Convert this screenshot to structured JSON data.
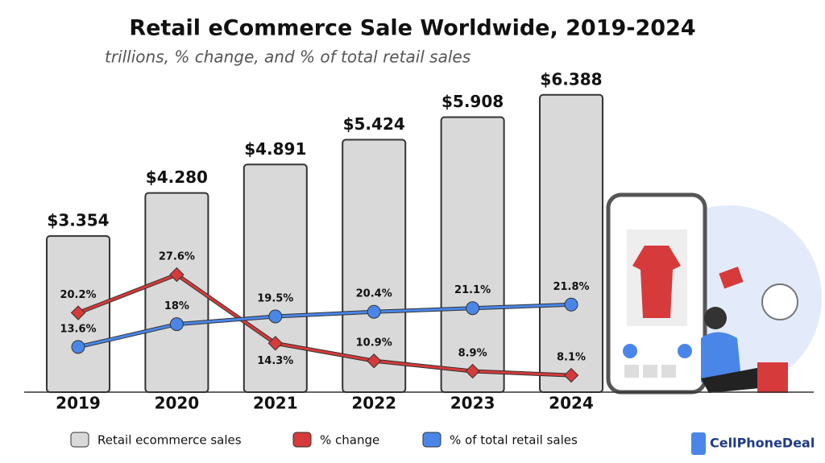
{
  "chart_data": {
    "type": "bar",
    "title": "Retail eCommerce Sale Worldwide, 2019-2024",
    "subtitle": "trillions, % change, and % of total retail sales",
    "categories": [
      "2019",
      "2020",
      "2021",
      "2022",
      "2023",
      "2024"
    ],
    "series": [
      {
        "name": "Retail ecommerce sales",
        "type": "bar",
        "color": "#d9d9d9",
        "values": [
          3.354,
          4.28,
          4.891,
          5.424,
          5.908,
          6.388
        ],
        "value_labels": [
          "$3.354",
          "$4.280",
          "$4.891",
          "$5.424",
          "$5.908",
          "$6.388"
        ]
      },
      {
        "name": "% change",
        "type": "line",
        "color": "#d63a3a",
        "values": [
          20.2,
          27.6,
          14.3,
          10.9,
          8.9,
          8.1
        ],
        "value_labels": [
          "20.2%",
          "27.6%",
          "14.3%",
          "10.9%",
          "8.9%",
          "8.1%"
        ]
      },
      {
        "name": "% of total retail sales",
        "type": "line",
        "color": "#4a86e8",
        "values": [
          13.6,
          18,
          19.5,
          20.4,
          21.1,
          21.8
        ],
        "value_labels": [
          "13.6%",
          "18%",
          "19.5%",
          "20.4%",
          "21.1%",
          "21.8%"
        ]
      }
    ],
    "brand": "CellPhoneDeal"
  }
}
